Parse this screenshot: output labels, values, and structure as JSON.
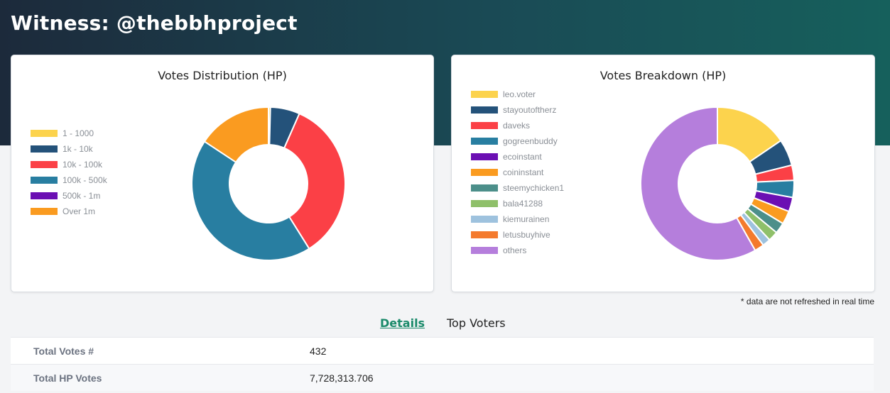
{
  "header": {
    "title": "Witness: @thebbhproject"
  },
  "distribution": {
    "title": "Votes Distribution (HP)",
    "legend": [
      {
        "label": "1 - 1000",
        "color": "#fcd34d"
      },
      {
        "label": "1k - 10k",
        "color": "#24527a"
      },
      {
        "label": "10k - 100k",
        "color": "#fb4046"
      },
      {
        "label": "100k - 500k",
        "color": "#287ea1"
      },
      {
        "label": "500k - 1m",
        "color": "#6b0fb3"
      },
      {
        "label": "Over 1m",
        "color": "#fa9b20"
      }
    ]
  },
  "breakdown": {
    "title": "Votes Breakdown (HP)",
    "legend": [
      {
        "label": "leo.voter",
        "color": "#fcd34d"
      },
      {
        "label": "stayoutoftherz",
        "color": "#24527a"
      },
      {
        "label": "daveks",
        "color": "#fb4046"
      },
      {
        "label": "gogreenbuddy",
        "color": "#287ea1"
      },
      {
        "label": "ecoinstant",
        "color": "#6b0fb3"
      },
      {
        "label": "coininstant",
        "color": "#fa9b20"
      },
      {
        "label": "steemychicken1",
        "color": "#4c8f8a"
      },
      {
        "label": "bala41288",
        "color": "#8fc06a"
      },
      {
        "label": "kiemurainen",
        "color": "#9ec2de"
      },
      {
        "label": "letusbuyhive",
        "color": "#f47a2d"
      },
      {
        "label": "others",
        "color": "#b57edc"
      }
    ]
  },
  "chart_data": [
    {
      "type": "pie",
      "title": "Votes Distribution (HP)",
      "donut": true,
      "categories": [
        "1 - 1000",
        "1k - 10k",
        "10k - 100k",
        "100k - 500k",
        "500k - 1m",
        "Over 1m"
      ],
      "values": [
        0.4,
        6.2,
        34.5,
        43.2,
        0,
        15.7
      ],
      "legend": "left"
    },
    {
      "type": "pie",
      "title": "Votes Breakdown (HP)",
      "donut": true,
      "categories": [
        "leo.voter",
        "stayoutoftherz",
        "daveks",
        "gogreenbuddy",
        "ecoinstant",
        "coininstant",
        "steemychicken1",
        "bala41288",
        "kiemurainen",
        "letusbuyhive",
        "others"
      ],
      "values": [
        15.5,
        5.6,
        3.2,
        3.6,
        3.0,
        2.8,
        2.3,
        2.1,
        1.7,
        2.0,
        58.2
      ],
      "legend": "left"
    }
  ],
  "note": "* data are not refreshed in real time",
  "tabs": {
    "details": "Details",
    "top_voters": "Top Voters"
  },
  "details": [
    {
      "key": "Total Votes #",
      "value": "432"
    },
    {
      "key": "Total HP Votes",
      "value": "7,728,313.706"
    }
  ]
}
